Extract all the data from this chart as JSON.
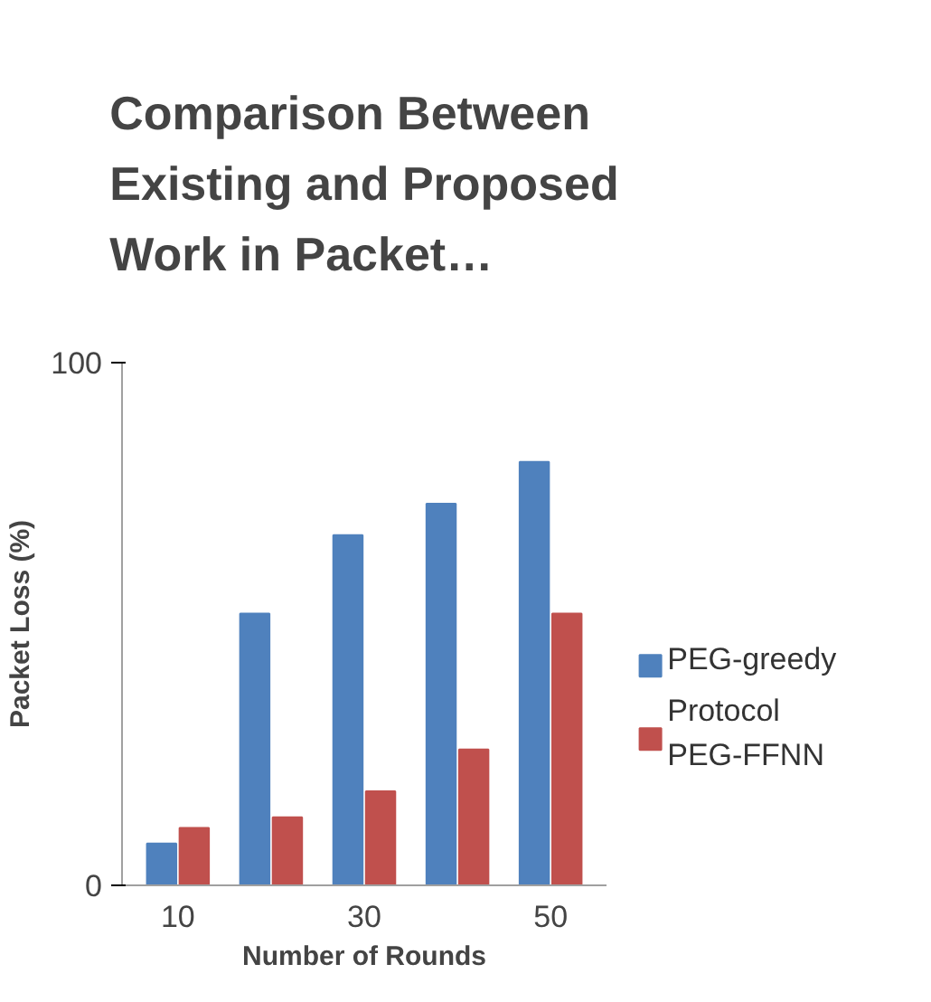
{
  "chart_data": {
    "type": "bar",
    "title": "Comparison Between Existing and Proposed Work in Packet…",
    "xlabel": "Number of Rounds",
    "ylabel": "Packet Loss (%)",
    "categories": [
      "10",
      null,
      "30",
      null,
      "50"
    ],
    "series": [
      {
        "name": "PEG-greedy",
        "color": "#4f81bd",
        "values": [
          8,
          52,
          67,
          73,
          81
        ]
      },
      {
        "name": "Protocol PEG-FFNN",
        "color": "#c0504d",
        "values": [
          11,
          13,
          18,
          26,
          52
        ]
      }
    ],
    "ylim": [
      0,
      100
    ],
    "yticks": [
      0,
      100
    ],
    "grid": false,
    "legend": "right"
  }
}
